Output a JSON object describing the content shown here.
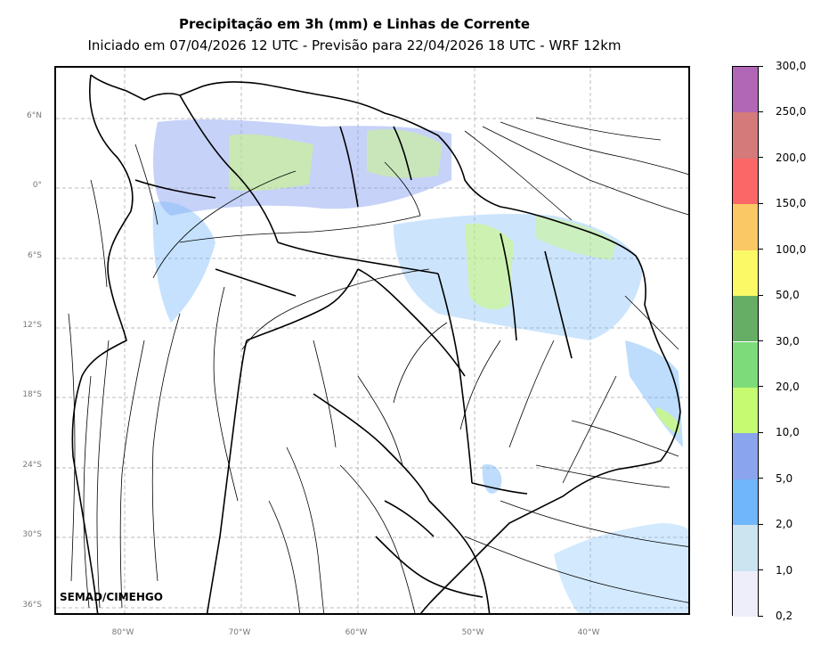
{
  "title": "Precipitação em 3h (mm) e Linhas de Corrente",
  "subtitle": "Iniciado em 07/04/2026 12 UTC - Previsão para 22/04/2026 18 UTC - WRF 12km",
  "credit": "SEMAD/CIMEHGO",
  "lat_labels": [
    "6°N",
    "0°",
    "6°S",
    "12°S",
    "18°S",
    "24°S",
    "30°S",
    "36°S"
  ],
  "lon_labels": [
    "80°W",
    "70°W",
    "60°W",
    "50°W",
    "40°W"
  ],
  "colorbar": {
    "labels": [
      "0,2",
      "1,0",
      "2,0",
      "5,0",
      "10,0",
      "20,0",
      "30,0",
      "50,0",
      "100,0",
      "150,0",
      "200,0",
      "250,0",
      "300,0"
    ],
    "colors": [
      "#eeeefa",
      "#cce4ef",
      "#70b6fa",
      "#8aa4ee",
      "#c6fa70",
      "#7edb7a",
      "#66ae66",
      "#fbfa66",
      "#fbc866",
      "#fb6666",
      "#d47a7a",
      "#b266b6"
    ]
  }
}
